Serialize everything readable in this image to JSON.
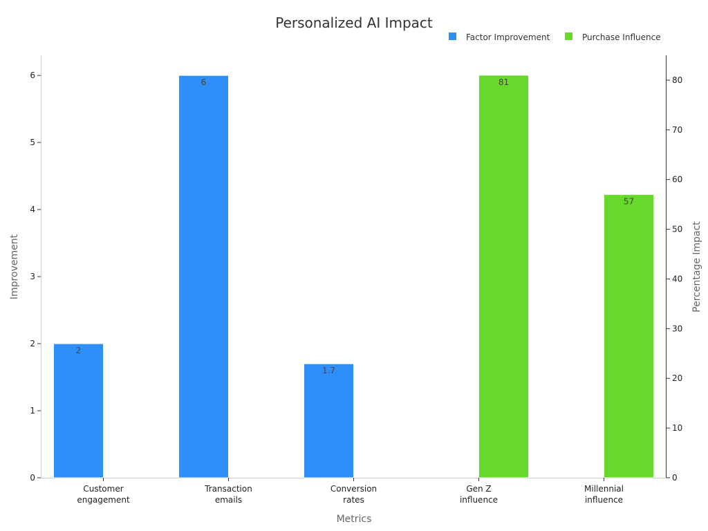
{
  "chart_data": {
    "type": "bar",
    "title": "Personalized AI Impact",
    "xlabel": "Metrics",
    "ylabel_left": "Improvement",
    "ylabel_right": "Percentage Impact",
    "categories": [
      "Customer engagement",
      "Transaction emails",
      "Conversion rates",
      "Gen Z influence",
      "Millennial influence"
    ],
    "category_lines": [
      [
        "Customer",
        "engagement"
      ],
      [
        "Transaction",
        "emails"
      ],
      [
        "Conversion",
        "rates"
      ],
      [
        "Gen Z",
        "influence"
      ],
      [
        "Millennial",
        "influence"
      ]
    ],
    "series": [
      {
        "name": "Factor Improvement",
        "axis": "left",
        "color": "#2d8ff7",
        "values": [
          2,
          6,
          1.7,
          null,
          null
        ],
        "labels": [
          "2",
          "6",
          "1.7",
          "",
          ""
        ]
      },
      {
        "name": "Purchase Influence",
        "axis": "right",
        "color": "#66d92a",
        "values": [
          null,
          null,
          null,
          81,
          57
        ],
        "labels": [
          "",
          "",
          "",
          "81",
          "57"
        ]
      }
    ],
    "ylim_left": [
      0,
      6.3
    ],
    "yticks_left": [
      0,
      1,
      2,
      3,
      4,
      5,
      6
    ],
    "ylim_right": [
      0,
      85
    ],
    "yticks_right": [
      0,
      10,
      20,
      30,
      40,
      50,
      60,
      70,
      80
    ],
    "grid": false,
    "legend_position": "top-right"
  }
}
